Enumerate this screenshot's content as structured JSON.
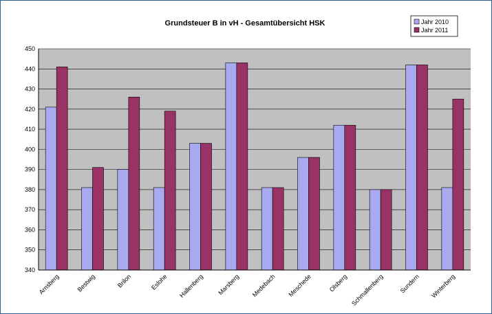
{
  "chart_data": {
    "type": "bar",
    "title": "Grundsteuer B in vH - Gesamtübersicht HSK",
    "xlabel": "",
    "ylabel": "",
    "ylim": [
      340,
      450
    ],
    "yticks": [
      340,
      350,
      360,
      370,
      380,
      390,
      400,
      410,
      420,
      430,
      440,
      450
    ],
    "grid": true,
    "legend_position": "top-right",
    "categories": [
      "Arnsberg",
      "Bestwig",
      "Brilon",
      "Eslohe",
      "Hallenberg",
      "Marsberg",
      "Medebach",
      "Meschede",
      "Olsberg",
      "Schmallenberg",
      "Sundern",
      "Winterberg"
    ],
    "series": [
      {
        "name": "Jahr 2010",
        "color": "#a9a9f0",
        "values": [
          421,
          381,
          390,
          381,
          403,
          443,
          381,
          396,
          412,
          380,
          442,
          381
        ]
      },
      {
        "name": "Jahr 2011",
        "color": "#993366",
        "values": [
          441,
          391,
          426,
          419,
          403,
          443,
          381,
          396,
          412,
          380,
          442,
          425
        ]
      }
    ],
    "plot_background": "#c0c0c0"
  }
}
